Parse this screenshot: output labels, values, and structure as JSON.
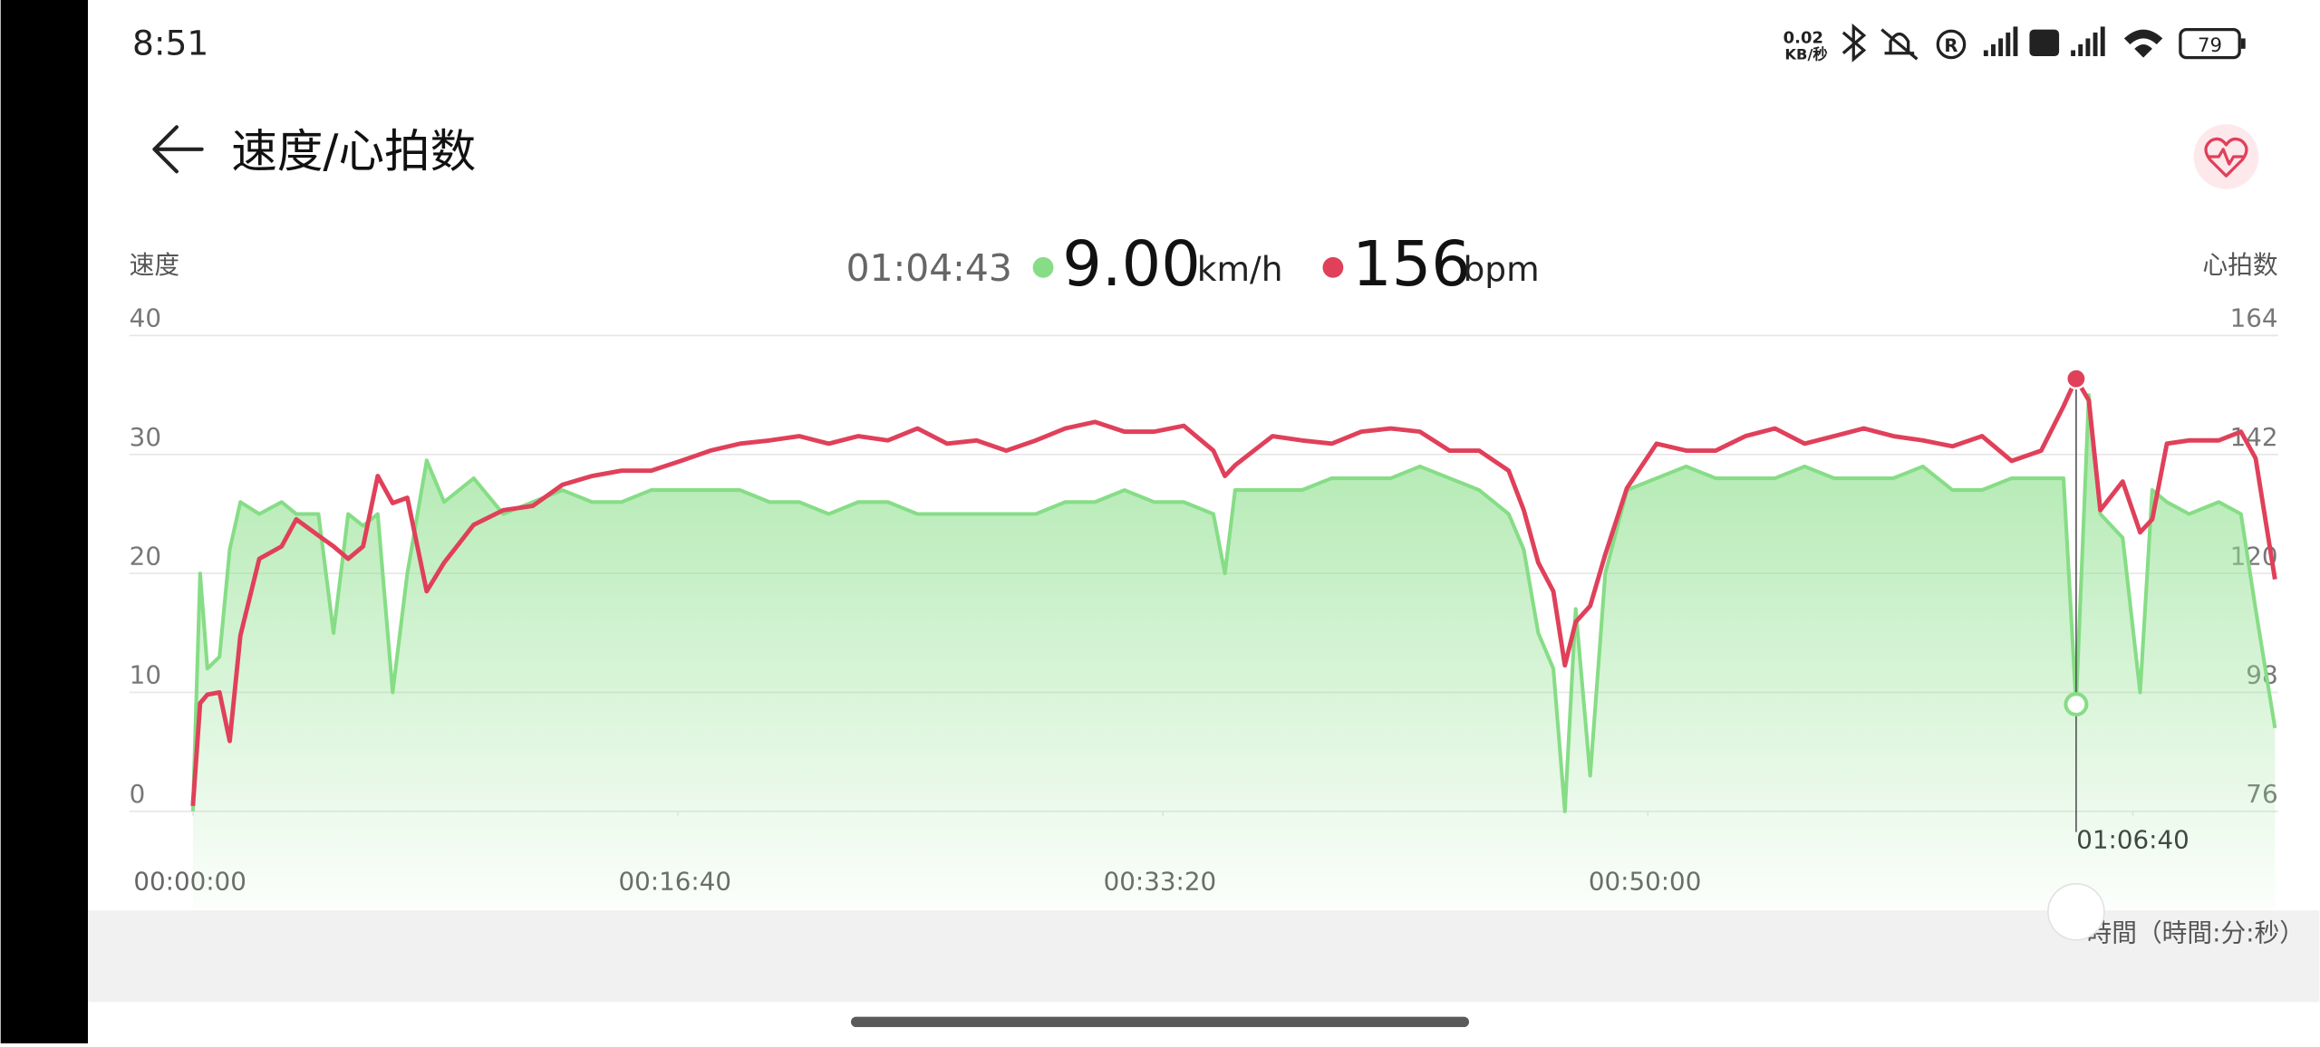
{
  "status_bar": {
    "time": "8:51",
    "net_speed": "0.02",
    "net_unit": "KB/秒",
    "battery": "79"
  },
  "header": {
    "title": "速度/心拍数"
  },
  "chart_data": {
    "type": "area",
    "ylabel": "速度",
    "y2label": "心拍数",
    "xlabel": "時間（時間:分:秒）",
    "readout": {
      "x": {
        "value": 3883,
        "label": "01:04:43"
      },
      "speed": {
        "value": 9,
        "label": "9.00"
      },
      "speed_unit": "km/h",
      "heart_rate": 156,
      "heart_rate_unit": "bpm"
    },
    "x": [
      0,
      15,
      30,
      55,
      76,
      98,
      137,
      183,
      213,
      259,
      290,
      320,
      351,
      381,
      412,
      442,
      482,
      518,
      579,
      640,
      701,
      762,
      823,
      884,
      945,
      1006,
      1067,
      1128,
      1189,
      1250,
      1311,
      1372,
      1433,
      1494,
      1555,
      1616,
      1677,
      1738,
      1799,
      1860,
      1921,
      1982,
      2043,
      2104,
      2128,
      2149,
      2226,
      2287,
      2348,
      2409,
      2470,
      2530,
      2591,
      2652,
      2713,
      2744,
      2774,
      2805,
      2829,
      2851,
      2881,
      2912,
      2957,
      3018,
      3079,
      3140,
      3201,
      3262,
      3323,
      3384,
      3445,
      3506,
      3567,
      3628,
      3689,
      3750,
      3811,
      3857,
      3883,
      3909,
      3933,
      3979,
      4015,
      4040,
      4070,
      4116,
      4177,
      4223,
      4253,
      4293
    ],
    "series": [
      {
        "color": "#86dd86",
        "values": [
          0,
          20,
          12,
          13,
          22,
          26,
          25,
          26,
          25,
          25,
          15,
          25,
          24,
          25,
          10,
          20,
          29.5,
          26,
          28,
          25,
          26,
          27,
          26,
          26,
          27,
          27,
          27,
          27,
          26,
          26,
          25,
          26,
          26,
          25,
          25,
          25,
          25,
          25,
          26,
          26,
          27,
          26,
          26,
          25,
          20,
          27,
          27,
          27,
          28,
          28,
          28,
          29,
          28,
          27,
          25,
          22,
          15,
          12,
          0,
          17,
          3,
          20,
          27,
          28,
          29,
          28,
          28,
          28,
          29,
          28,
          28,
          28,
          29,
          27,
          27,
          28,
          28,
          28,
          9,
          35,
          25,
          23,
          10,
          27,
          26,
          25,
          26,
          25,
          17,
          7
        ]
      },
      {
        "color": "#e0405a",
        "axis": "y2",
        "values": [
          77,
          96,
          97.6,
          98,
          89,
          108.5,
          122.7,
          125,
          130,
          127,
          125,
          122.7,
          125,
          138,
          133,
          134,
          116.7,
          122,
          129,
          131.7,
          132.5,
          136.4,
          138,
          139,
          139,
          140.8,
          142.7,
          144,
          144.6,
          145.4,
          144,
          145.4,
          144.6,
          146.8,
          144,
          144.6,
          142.7,
          144.6,
          146.8,
          148,
          146.2,
          146.2,
          147.3,
          142.7,
          138,
          140,
          145.4,
          144.6,
          144,
          146.2,
          146.8,
          146.2,
          142.7,
          142.7,
          139,
          131.7,
          122,
          116.7,
          103,
          111,
          114,
          123.5,
          135.8,
          144,
          142.7,
          142.7,
          145.4,
          146.8,
          144,
          145.4,
          146.8,
          145.4,
          144.6,
          143.5,
          145.4,
          140.8,
          142.7,
          150.9,
          156,
          152,
          131.7,
          137,
          127.6,
          130,
          144,
          144.6,
          144.6,
          146.2,
          141.3,
          118.9
        ]
      }
    ],
    "xlim": [
      0,
      4293
    ],
    "xticks": [
      {
        "value": 0,
        "label": "00:00:00"
      },
      {
        "value": 1000,
        "label": "00:16:40"
      },
      {
        "value": 2000,
        "label": "00:33:20"
      },
      {
        "value": 3000,
        "label": "00:50:00"
      },
      {
        "value": 4000,
        "label": "01:06:40"
      }
    ],
    "ylim": [
      0,
      40
    ],
    "yticks": [
      0,
      10,
      20,
      30,
      40
    ],
    "y2lim": [
      76,
      164
    ],
    "y2ticks": [
      76,
      98,
      120,
      142,
      164
    ],
    "grid": true
  }
}
